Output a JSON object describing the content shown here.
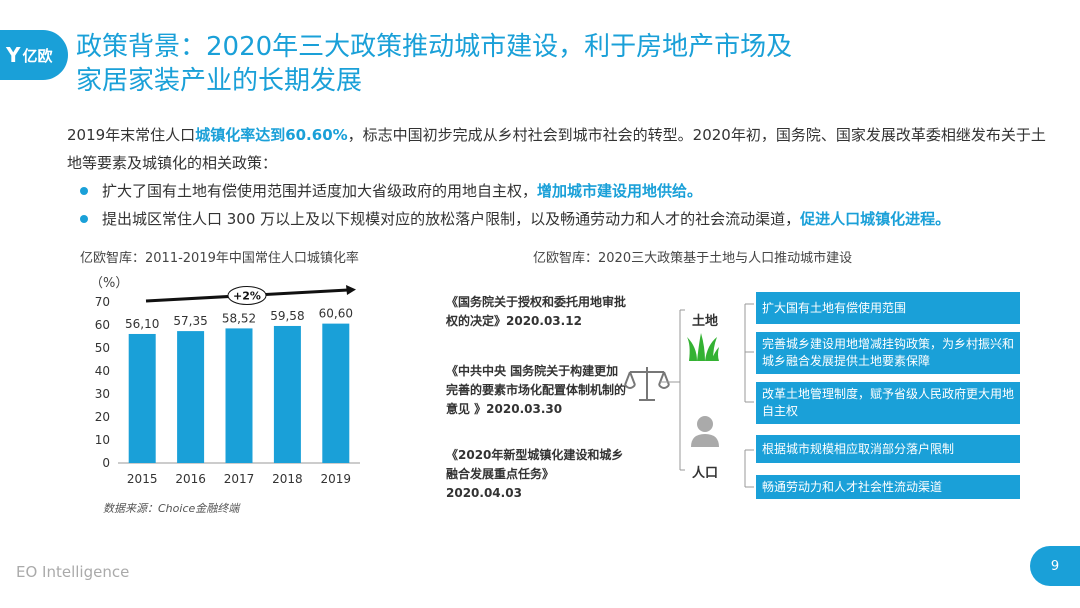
{
  "logo": {
    "text": "亿欧"
  },
  "title": {
    "line1": "政策背景：2020年三大政策推动城市建设，利于房地产市场及",
    "line2": "家居家装产业的长期发展"
  },
  "intro": {
    "part1": "2019年末常住人口",
    "highlight": "城镇化率达到60.60%",
    "part2": "，标志中国初步完成从乡村社会到城市社会的转型。2020年初，国务院、国家发展改革委相继发布关于土地等要素及城镇化的相关政策："
  },
  "bullets": [
    {
      "text": "扩大了国有土地有偿使用范围并适度加大省级政府的用地自主权，",
      "highlight": "增加城市建设用地供给。"
    },
    {
      "text": "提出城区常住人口 300 万以上及以下规模对应的放松落户限制，以及畅通劳动力和人才的社会流动渠道，",
      "highlight": "促进人口城镇化进程。"
    }
  ],
  "chart_data": {
    "type": "bar",
    "title": "亿欧智库：2011-2019年中国常住人口城镇化率",
    "ylabel": "（%）",
    "categories": [
      "2015",
      "2016",
      "2017",
      "2018",
      "2019"
    ],
    "values": [
      56.1,
      57.35,
      58.52,
      59.58,
      60.6
    ],
    "data_labels": [
      "56,10",
      "57,35",
      "58,52",
      "59,58",
      "60,60"
    ],
    "yticks": [
      "0",
      "10",
      "20",
      "30",
      "40",
      "50",
      "60",
      "70"
    ],
    "ylim": [
      0,
      70
    ],
    "grid": false,
    "annotation": "+2%",
    "bar_color": "#1aa0d8"
  },
  "source": "数据来源：Choice金融终端",
  "diagram": {
    "title": "亿欧智库：2020三大政策基于土地与人口推动城市建设",
    "policies": [
      "《国务院关于授权和委托用地审批权的决定》2020.03.12",
      "《中共中央 国务院关于构建更加完善的要素市场化配置体制机制的意见 》2020.03.30",
      "《2020年新型城镇化建设和城乡融合发展重点任务》2020.04.03"
    ],
    "land_label": "土地",
    "people_label": "人口",
    "land_measures": [
      "扩大国有土地有偿使用范围",
      "完善城乡建设用地增减挂钩政策，为乡村振兴和城乡融合发展提供土地要素保障",
      "改革土地管理制度，赋予省级人民政府更大用地自主权"
    ],
    "people_measures": [
      "根据城市规模相应取消部分落户限制",
      "畅通劳动力和人才社会性流动渠道"
    ]
  },
  "footer": {
    "brand": "EO Intelligence",
    "page": "9"
  },
  "colors": {
    "accent": "#1aa0d8",
    "grass": "#34b233",
    "icon_gray": "#777777"
  },
  "icons": {
    "balance": "scale-icon",
    "land": "grass-icon",
    "people": "person-icon"
  }
}
